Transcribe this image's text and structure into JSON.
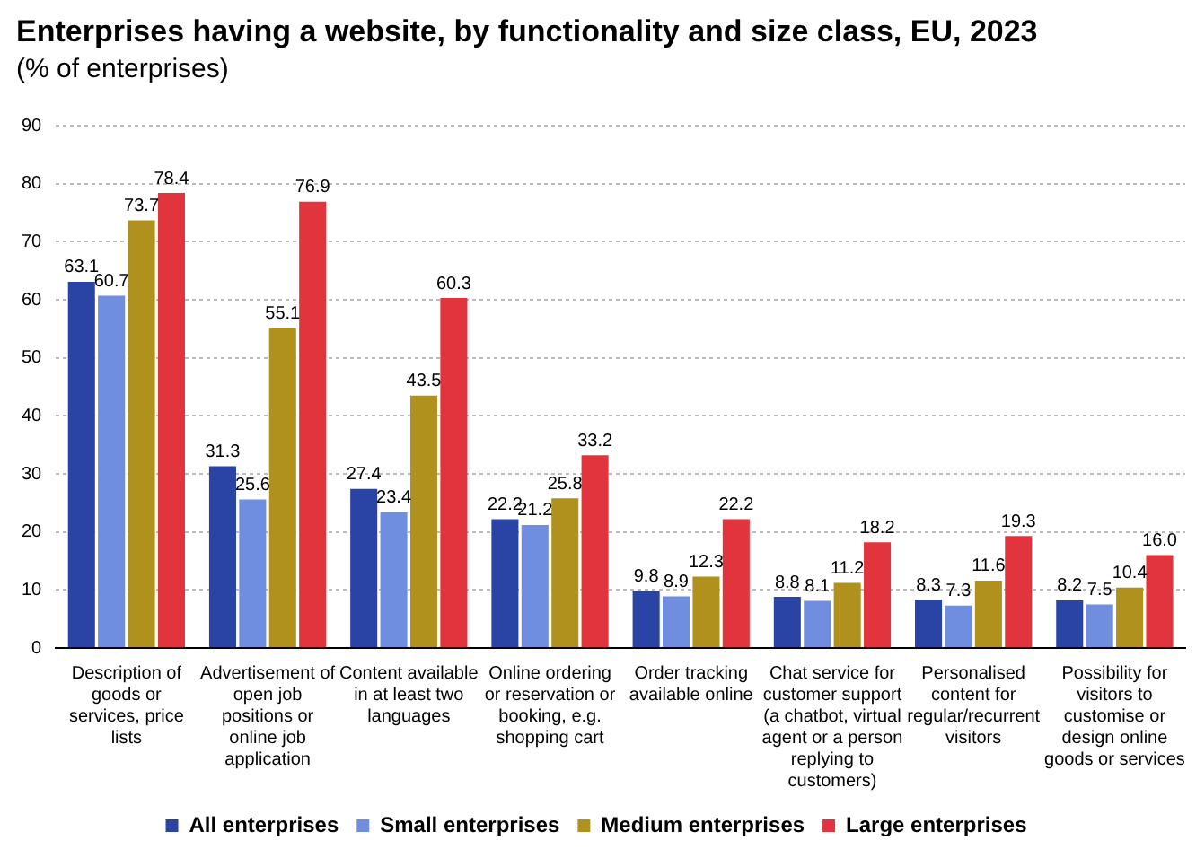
{
  "chart_data": {
    "type": "bar",
    "title": "Enterprises having a website, by functionality and size class, EU, 2023",
    "subtitle": "(% of enterprises)",
    "categories": [
      "Description of goods or services, price lists",
      "Advertisement of open job positions or online job application",
      "Content available in at least two languages",
      "Online ordering or reservation or booking, e.g. shopping cart",
      "Order tracking available online",
      "Chat service for customer support (a chatbot, virtual agent or a person replying to customers)",
      "Personalised content for regular/recurrent visitors",
      "Possibility for visitors to customise or design online goods or services"
    ],
    "series": [
      {
        "name": "All enterprises",
        "color": "#2a44a6",
        "values": [
          63.1,
          31.3,
          27.4,
          22.2,
          9.8,
          8.8,
          8.3,
          8.2
        ],
        "value_labels": [
          "63.1",
          "31.3",
          "27.4",
          "22.2",
          "9.8",
          "8.8",
          "8.3",
          "8.2"
        ]
      },
      {
        "name": "Small enterprises",
        "color": "#6f8ee0",
        "values": [
          60.7,
          25.6,
          23.4,
          21.2,
          8.9,
          8.1,
          7.3,
          7.5
        ],
        "value_labels": [
          "60.7",
          "25.6",
          "23.4",
          "21.2",
          "8.9",
          "8.1",
          "7.3",
          "7.5"
        ]
      },
      {
        "name": "Medium enterprises",
        "color": "#b0911d",
        "values": [
          73.7,
          55.1,
          43.5,
          25.8,
          12.3,
          11.2,
          11.6,
          10.4
        ],
        "value_labels": [
          "73.7",
          "55.1",
          "43.5",
          "25.8",
          "12.3",
          "11.2",
          "11.6",
          "10.4"
        ]
      },
      {
        "name": "Large enterprises",
        "color": "#e2343c",
        "values": [
          78.4,
          76.9,
          60.3,
          33.2,
          22.2,
          18.2,
          19.3,
          16.0
        ],
        "value_labels": [
          "78.4",
          "76.9",
          "60.3",
          "33.2",
          "22.2",
          "18.2",
          "19.3",
          "16.0"
        ]
      }
    ],
    "ylim": [
      0,
      90
    ],
    "yticks": [
      0,
      10,
      20,
      30,
      40,
      50,
      60,
      70,
      80,
      90
    ],
    "grid": "y",
    "legend": "bottom"
  }
}
